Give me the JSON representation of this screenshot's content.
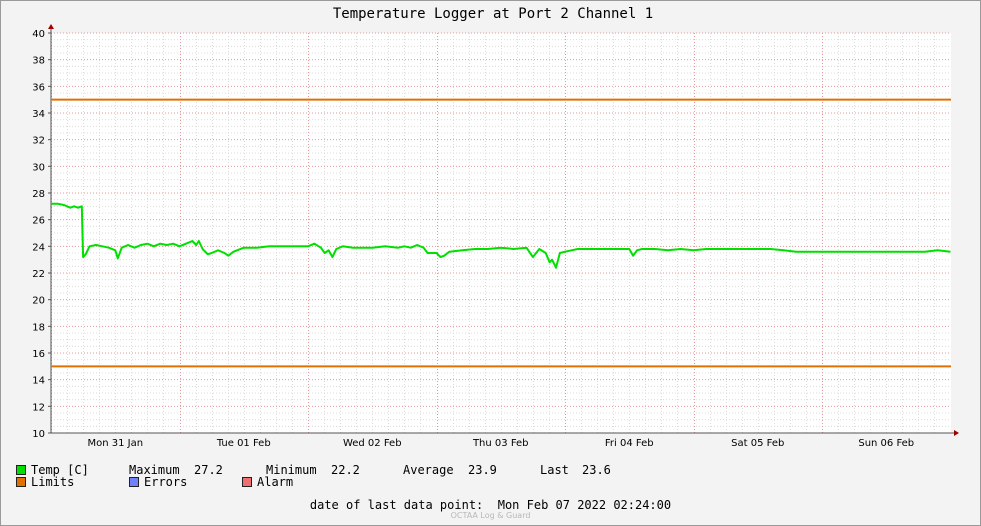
{
  "chart_data": {
    "type": "line",
    "title": "Temperature Logger at Port 2 Channel 1",
    "ylim": [
      10,
      40
    ],
    "y_ticks": [
      "10",
      "12",
      "14",
      "16",
      "18",
      "20",
      "22",
      "24",
      "26",
      "28",
      "30",
      "32",
      "34",
      "36",
      "38",
      "40"
    ],
    "x_ticks": [
      "Mon 31 Jan",
      "Tue 01 Feb",
      "Wed 02 Feb",
      "Thu 03 Feb",
      "Fri 04 Feb",
      "Sat 05 Feb",
      "Sun 06 Feb"
    ],
    "xlim_days": [
      0,
      7
    ],
    "grid": true,
    "series": [
      {
        "name": "Temp [C]",
        "color": "#00e000",
        "points": [
          [
            0.0,
            27.2
          ],
          [
            0.05,
            27.2
          ],
          [
            0.1,
            27.1
          ],
          [
            0.15,
            26.9
          ],
          [
            0.18,
            27.0
          ],
          [
            0.21,
            26.9
          ],
          [
            0.24,
            27.0
          ],
          [
            0.25,
            23.2
          ],
          [
            0.27,
            23.4
          ],
          [
            0.3,
            24.0
          ],
          [
            0.35,
            24.1
          ],
          [
            0.4,
            24.0
          ],
          [
            0.45,
            23.9
          ],
          [
            0.5,
            23.7
          ],
          [
            0.52,
            23.1
          ],
          [
            0.55,
            23.9
          ],
          [
            0.6,
            24.1
          ],
          [
            0.65,
            23.9
          ],
          [
            0.7,
            24.1
          ],
          [
            0.75,
            24.2
          ],
          [
            0.8,
            24.0
          ],
          [
            0.85,
            24.2
          ],
          [
            0.9,
            24.1
          ],
          [
            0.95,
            24.2
          ],
          [
            1.0,
            24.0
          ],
          [
            1.05,
            24.2
          ],
          [
            1.1,
            24.4
          ],
          [
            1.13,
            24.1
          ],
          [
            1.15,
            24.4
          ],
          [
            1.18,
            23.8
          ],
          [
            1.22,
            23.4
          ],
          [
            1.25,
            23.5
          ],
          [
            1.3,
            23.7
          ],
          [
            1.35,
            23.5
          ],
          [
            1.38,
            23.3
          ],
          [
            1.42,
            23.6
          ],
          [
            1.5,
            23.9
          ],
          [
            1.6,
            23.9
          ],
          [
            1.7,
            24.0
          ],
          [
            1.8,
            24.0
          ],
          [
            1.9,
            24.0
          ],
          [
            2.0,
            24.0
          ],
          [
            2.05,
            24.2
          ],
          [
            2.1,
            23.9
          ],
          [
            2.13,
            23.5
          ],
          [
            2.16,
            23.7
          ],
          [
            2.19,
            23.2
          ],
          [
            2.22,
            23.8
          ],
          [
            2.27,
            24.0
          ],
          [
            2.35,
            23.9
          ],
          [
            2.5,
            23.9
          ],
          [
            2.6,
            24.0
          ],
          [
            2.7,
            23.9
          ],
          [
            2.75,
            24.0
          ],
          [
            2.8,
            23.9
          ],
          [
            2.85,
            24.1
          ],
          [
            2.9,
            23.9
          ],
          [
            2.93,
            23.5
          ],
          [
            3.0,
            23.5
          ],
          [
            3.03,
            23.2
          ],
          [
            3.06,
            23.3
          ],
          [
            3.1,
            23.6
          ],
          [
            3.2,
            23.7
          ],
          [
            3.3,
            23.8
          ],
          [
            3.4,
            23.8
          ],
          [
            3.5,
            23.9
          ],
          [
            3.6,
            23.8
          ],
          [
            3.7,
            23.9
          ],
          [
            3.75,
            23.2
          ],
          [
            3.8,
            23.8
          ],
          [
            3.85,
            23.5
          ],
          [
            3.88,
            22.8
          ],
          [
            3.9,
            23.0
          ],
          [
            3.93,
            22.4
          ],
          [
            3.96,
            23.5
          ],
          [
            4.0,
            23.6
          ],
          [
            4.1,
            23.8
          ],
          [
            4.2,
            23.8
          ],
          [
            4.3,
            23.8
          ],
          [
            4.4,
            23.8
          ],
          [
            4.5,
            23.8
          ],
          [
            4.53,
            23.3
          ],
          [
            4.56,
            23.7
          ],
          [
            4.6,
            23.8
          ],
          [
            4.7,
            23.8
          ],
          [
            4.8,
            23.7
          ],
          [
            4.9,
            23.8
          ],
          [
            5.0,
            23.7
          ],
          [
            5.1,
            23.8
          ],
          [
            5.2,
            23.8
          ],
          [
            5.3,
            23.8
          ],
          [
            5.4,
            23.8
          ],
          [
            5.5,
            23.8
          ],
          [
            5.6,
            23.8
          ],
          [
            5.7,
            23.7
          ],
          [
            5.8,
            23.6
          ],
          [
            5.9,
            23.6
          ],
          [
            6.0,
            23.6
          ],
          [
            6.1,
            23.6
          ],
          [
            6.2,
            23.6
          ],
          [
            6.3,
            23.6
          ],
          [
            6.4,
            23.6
          ],
          [
            6.5,
            23.6
          ],
          [
            6.6,
            23.6
          ],
          [
            6.7,
            23.6
          ],
          [
            6.8,
            23.6
          ],
          [
            6.9,
            23.7
          ],
          [
            7.0,
            23.6
          ]
        ]
      },
      {
        "name": "Limits",
        "color": "#e07000",
        "values": [
          35,
          15
        ]
      }
    ]
  },
  "legend": {
    "temp": {
      "label": "Temp [C]",
      "color": "#00e000"
    },
    "limits": {
      "label": "Limits",
      "color": "#e07000"
    },
    "errors": {
      "label": "Errors",
      "color": "#7080ff"
    },
    "alarm": {
      "label": "Alarm",
      "color": "#f07070"
    }
  },
  "stats": {
    "maximum_label": "Maximum",
    "maximum": "27.2",
    "minimum_label": "Minimum",
    "minimum": "22.2",
    "average_label": "Average",
    "average": "23.9",
    "last_label": "Last",
    "last": "23.6"
  },
  "footer": {
    "label": "date of last data point:",
    "value": "Mon Feb 07 2022 02:24:00"
  },
  "watermark": "OCTAA Log & Guard"
}
